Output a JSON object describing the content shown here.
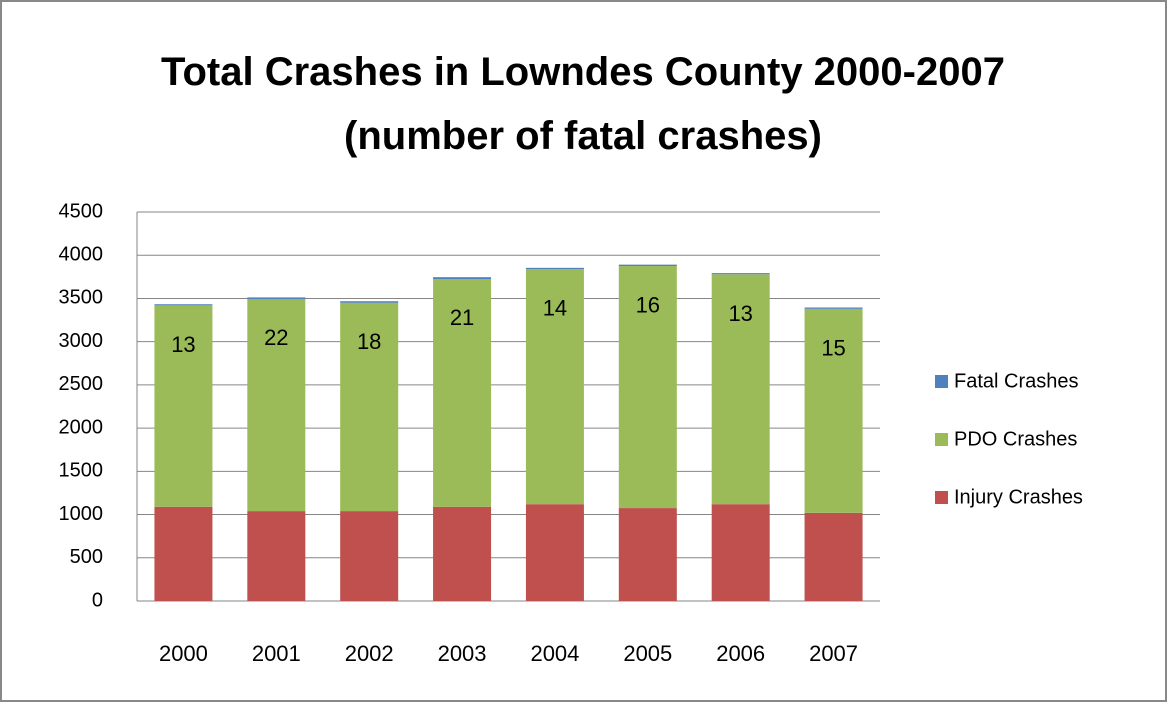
{
  "chart_data": {
    "type": "stacked_bar",
    "title": "Total Crashes in Lowndes County 2000-2007 (number of fatal crashes)",
    "categories": [
      "2000",
      "2001",
      "2002",
      "2003",
      "2004",
      "2005",
      "2006",
      "2007"
    ],
    "series": [
      {
        "name": "Injury Crashes",
        "color": "#c0504d",
        "values": [
          1090,
          1040,
          1040,
          1090,
          1120,
          1075,
          1120,
          1020
        ]
      },
      {
        "name": "PDO Crashes",
        "color": "#9bbb59",
        "values": [
          2330,
          2450,
          2410,
          2635,
          2720,
          2800,
          2660,
          2360
        ]
      },
      {
        "name": "Fatal Crashes",
        "color": "#4f81bd",
        "values": [
          13,
          22,
          18,
          21,
          14,
          16,
          13,
          15
        ]
      }
    ],
    "ylim": [
      0,
      4500
    ],
    "yticks": [
      0,
      500,
      1000,
      1500,
      2000,
      2500,
      3000,
      3500,
      4000,
      4500
    ],
    "grid": true,
    "legend": "right",
    "data_labels_series": "Fatal Crashes"
  }
}
